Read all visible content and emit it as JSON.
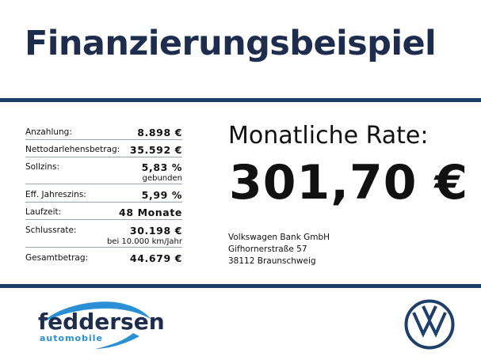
{
  "heading": "Finanzierungsbeispiel",
  "terms": [
    {
      "label": "Anzahlung:",
      "value": "8.898 €",
      "sub": ""
    },
    {
      "label": "Nettodarlehensbetrag:",
      "value": "35.592 €",
      "sub": ""
    },
    {
      "label": "Sollzins:",
      "value": "5,83 %",
      "sub": "gebunden"
    },
    {
      "label": "Eff. Jahreszins:",
      "value": "5,99 %",
      "sub": ""
    },
    {
      "label": "Laufzeit:",
      "value": "48 Monate",
      "sub": ""
    },
    {
      "label": "Schlussrate:",
      "value": "30.198 €",
      "sub": "bei 10.000 km/Jahr"
    },
    {
      "label": "Gesamtbetrag:",
      "value": "44.679 €",
      "sub": ""
    }
  ],
  "rate": {
    "label": "Monatliche Rate:",
    "value": "301,70 €"
  },
  "bank": {
    "name": "Volkswagen Bank GmbH",
    "street": "Gifhornerstraße 57",
    "city": "38112 Braunschweig"
  },
  "dealer": {
    "name": "feddersen",
    "tagline": "automobile"
  },
  "colors": {
    "navy": "#1e3e6b",
    "title": "#1e2d4d",
    "accent_blue": "#2b8fd6"
  },
  "icons": {
    "dealer_logo": "car-swoosh-logo",
    "brand_logo": "vw-logo-icon"
  }
}
